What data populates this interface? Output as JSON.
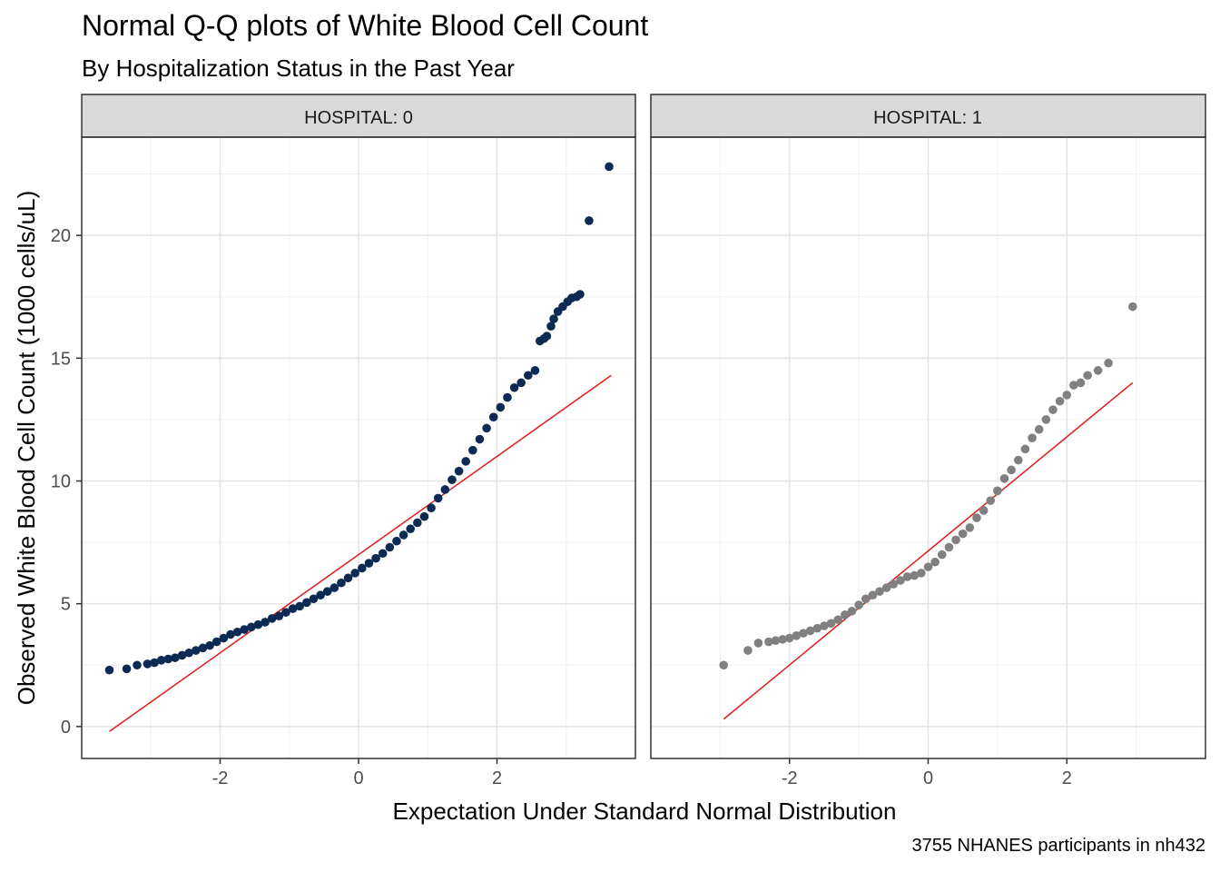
{
  "chart_data": {
    "type": "scatter",
    "title": "Normal Q-Q plots of White Blood Cell Count",
    "subtitle": "By Hospitalization Status in the Past Year",
    "xlabel": "Expectation Under Standard Normal Distribution",
    "ylabel": "Observed White Blood Cell Count (1000 cells/uL)",
    "caption": "3755 NHANES participants in nh432",
    "xlim": [
      -4,
      4
    ],
    "ylim": [
      -1.3,
      24
    ],
    "x_ticks": [
      -2,
      0,
      2
    ],
    "x_tick_labels": [
      "-2",
      "0",
      "2"
    ],
    "y_ticks": [
      0,
      5,
      10,
      15,
      20
    ],
    "y_tick_labels": [
      "0",
      "5",
      "10",
      "15",
      "20"
    ],
    "grid": true,
    "panels": [
      {
        "name": "HOSPITAL: 0",
        "point_color": "#0d2a52",
        "line_color": "#e31a1c",
        "qq_line": {
          "x": [
            -3.6,
            3.65
          ],
          "y": [
            -0.2,
            14.3
          ]
        },
        "points_x": [
          -3.6,
          -3.35,
          -3.2,
          -3.05,
          -2.95,
          -2.85,
          -2.75,
          -2.65,
          -2.55,
          -2.45,
          -2.35,
          -2.25,
          -2.15,
          -2.05,
          -1.95,
          -1.85,
          -1.75,
          -1.65,
          -1.55,
          -1.45,
          -1.35,
          -1.25,
          -1.15,
          -1.05,
          -0.95,
          -0.85,
          -0.75,
          -0.65,
          -0.55,
          -0.45,
          -0.35,
          -0.25,
          -0.15,
          -0.05,
          0.05,
          0.15,
          0.25,
          0.35,
          0.45,
          0.55,
          0.65,
          0.75,
          0.85,
          0.95,
          1.05,
          1.15,
          1.25,
          1.35,
          1.45,
          1.55,
          1.65,
          1.75,
          1.85,
          1.95,
          2.05,
          2.15,
          2.25,
          2.35,
          2.45,
          2.55,
          2.62,
          2.68,
          2.72,
          2.78,
          2.82,
          2.88,
          2.95,
          3.02,
          3.08,
          3.15,
          3.2,
          3.33,
          3.62
        ],
        "points_y": [
          2.3,
          2.35,
          2.5,
          2.55,
          2.6,
          2.7,
          2.75,
          2.8,
          2.9,
          3.0,
          3.1,
          3.2,
          3.3,
          3.45,
          3.6,
          3.75,
          3.85,
          3.95,
          4.05,
          4.15,
          4.25,
          4.4,
          4.5,
          4.65,
          4.8,
          4.9,
          5.05,
          5.2,
          5.35,
          5.5,
          5.65,
          5.85,
          6.05,
          6.25,
          6.45,
          6.65,
          6.85,
          7.05,
          7.3,
          7.55,
          7.8,
          8.05,
          8.3,
          8.55,
          8.9,
          9.3,
          9.65,
          10.05,
          10.4,
          10.8,
          11.25,
          11.7,
          12.15,
          12.6,
          13.0,
          13.4,
          13.8,
          14.0,
          14.3,
          14.5,
          15.7,
          15.8,
          15.9,
          16.3,
          16.6,
          16.9,
          17.1,
          17.3,
          17.45,
          17.5,
          17.6,
          20.6,
          22.8
        ]
      },
      {
        "name": "HOSPITAL: 1",
        "point_color": "#808080",
        "line_color": "#e31a1c",
        "qq_line": {
          "x": [
            -2.95,
            2.95
          ],
          "y": [
            0.3,
            14.0
          ]
        },
        "points_x": [
          -2.95,
          -2.6,
          -2.45,
          -2.3,
          -2.2,
          -2.1,
          -2.0,
          -1.9,
          -1.8,
          -1.7,
          -1.6,
          -1.5,
          -1.4,
          -1.3,
          -1.2,
          -1.1,
          -1.0,
          -0.9,
          -0.8,
          -0.7,
          -0.6,
          -0.5,
          -0.4,
          -0.3,
          -0.2,
          -0.1,
          0.0,
          0.1,
          0.2,
          0.3,
          0.4,
          0.5,
          0.6,
          0.7,
          0.8,
          0.9,
          1.0,
          1.1,
          1.2,
          1.3,
          1.4,
          1.5,
          1.6,
          1.7,
          1.8,
          1.9,
          2.0,
          2.1,
          2.2,
          2.3,
          2.45,
          2.6,
          2.95
        ],
        "points_y": [
          2.5,
          3.1,
          3.4,
          3.45,
          3.5,
          3.55,
          3.6,
          3.7,
          3.8,
          3.9,
          4.0,
          4.1,
          4.2,
          4.35,
          4.55,
          4.7,
          4.95,
          5.2,
          5.35,
          5.5,
          5.65,
          5.8,
          5.95,
          6.1,
          6.15,
          6.25,
          6.5,
          6.7,
          7.0,
          7.3,
          7.6,
          7.85,
          8.1,
          8.5,
          8.8,
          9.2,
          9.6,
          10.1,
          10.45,
          10.85,
          11.3,
          11.75,
          12.1,
          12.5,
          12.9,
          13.25,
          13.5,
          13.9,
          14.0,
          14.3,
          14.5,
          14.8,
          17.1
        ]
      }
    ]
  }
}
